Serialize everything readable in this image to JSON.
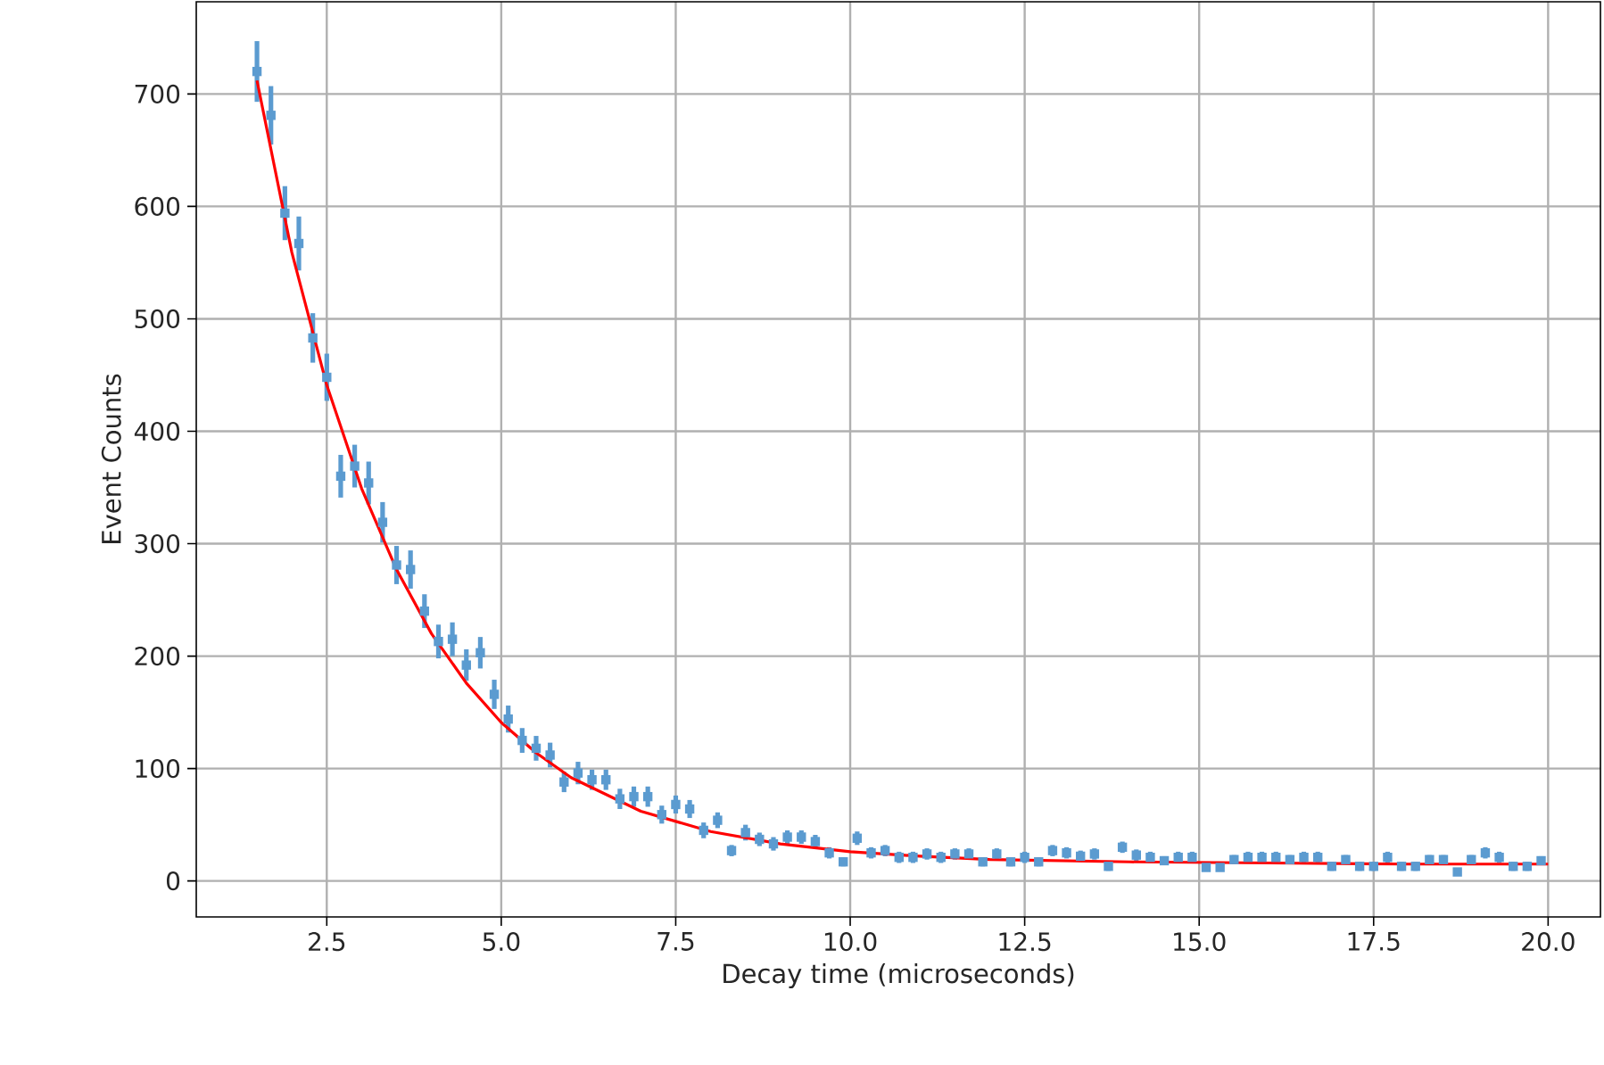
{
  "chart_data": {
    "type": "line",
    "xlabel": "Decay time (microseconds)",
    "ylabel": "Event Counts",
    "xlim": [
      0.63,
      20.75
    ],
    "ylim": [
      -32,
      782
    ],
    "xticks": [
      2.5,
      {
        "value": 5,
        "label": "5.0"
      },
      7.5,
      {
        "value": 10,
        "label": "10.0"
      },
      12.5,
      {
        "value": 15,
        "label": "15.0"
      },
      17.5,
      {
        "value": 20,
        "label": "20.0"
      }
    ],
    "yticks": [
      0,
      100,
      200,
      300,
      400,
      500,
      600,
      700
    ],
    "grid": true,
    "series": [
      {
        "type": "scatter",
        "color": "#5b9bd0",
        "marker": "square",
        "x": [
          1.5,
          1.7,
          1.9,
          2.1,
          2.3,
          2.5,
          2.7,
          2.9,
          3.1,
          3.3,
          3.5,
          3.7,
          3.9,
          4.1,
          4.3,
          4.5,
          4.7,
          4.9,
          5.1,
          5.3,
          5.5,
          5.7,
          5.9,
          6.1,
          6.3,
          6.5,
          6.7,
          6.9,
          7.1,
          7.3,
          7.5,
          7.7,
          7.9,
          8.1,
          8.3,
          8.5,
          8.7,
          8.9,
          9.1,
          9.3,
          9.5,
          9.7,
          9.9,
          10.1,
          10.3,
          10.5,
          10.7,
          10.9,
          11.1,
          11.3,
          11.5,
          11.7,
          11.9,
          12.1,
          12.3,
          12.5,
          12.7,
          12.9,
          13.1,
          13.3,
          13.5,
          13.7,
          13.9,
          14.1,
          14.3,
          14.5,
          14.7,
          14.9,
          15.1,
          15.3,
          15.5,
          15.7,
          15.9,
          16.1,
          16.3,
          16.5,
          16.7,
          16.9,
          17.1,
          17.3,
          17.5,
          17.7,
          17.9,
          18.1,
          18.3,
          18.5,
          18.7,
          18.9,
          19.1,
          19.3,
          19.5,
          19.7,
          19.9
        ],
        "values": [
          720,
          681,
          594,
          567,
          483,
          448,
          360,
          369,
          354,
          319,
          281,
          277,
          240,
          213,
          215,
          192,
          203,
          166,
          144,
          125,
          118,
          112,
          88,
          96,
          90,
          90,
          73,
          75,
          75,
          59,
          68,
          64,
          45,
          54,
          27,
          43,
          37,
          33,
          39,
          39,
          35,
          25,
          17,
          38,
          25,
          27,
          21,
          21,
          24,
          21,
          24,
          24,
          17,
          24,
          17,
          21,
          17,
          27,
          25,
          22,
          24,
          13,
          30,
          23,
          21,
          18,
          21,
          21,
          12,
          12,
          19,
          21,
          21,
          21,
          19,
          21,
          21,
          13,
          19,
          13,
          13,
          21,
          13,
          13,
          19,
          19,
          8,
          19,
          25,
          21,
          13,
          13,
          18
        ],
        "errors": [
          27,
          26,
          24,
          24,
          22,
          21,
          19,
          19,
          19,
          18,
          17,
          17,
          15,
          15,
          15,
          14,
          14,
          13,
          12,
          11,
          11,
          11,
          9,
          10,
          9,
          9,
          9,
          9,
          9,
          8,
          8,
          8,
          7,
          7,
          5,
          7,
          6,
          6,
          6,
          6,
          6,
          5,
          4,
          6,
          5,
          5,
          5,
          5,
          5,
          5,
          5,
          5,
          4,
          5,
          4,
          5,
          4,
          5,
          5,
          5,
          5,
          4,
          5,
          5,
          5,
          4,
          5,
          5,
          3,
          3,
          4,
          5,
          5,
          5,
          4,
          5,
          5,
          4,
          4,
          4,
          4,
          5,
          4,
          4,
          4,
          4,
          3,
          4,
          5,
          5,
          4,
          4,
          4
        ]
      },
      {
        "color": "#ff0000",
        "marker": "none",
        "line_style": "solid",
        "x": [
          1.5,
          2.0,
          2.5,
          3.0,
          3.5,
          4.0,
          4.5,
          5.0,
          5.5,
          6.0,
          7.0,
          8.0,
          9.0,
          10.0,
          11.0,
          12.0,
          14.0,
          16.0,
          18.0,
          20.0
        ],
        "values": [
          712,
          559,
          441,
          349,
          277,
          220,
          176,
          141,
          114,
          92,
          62,
          44,
          33,
          26,
          22,
          19,
          17,
          16,
          15,
          15
        ]
      }
    ]
  }
}
